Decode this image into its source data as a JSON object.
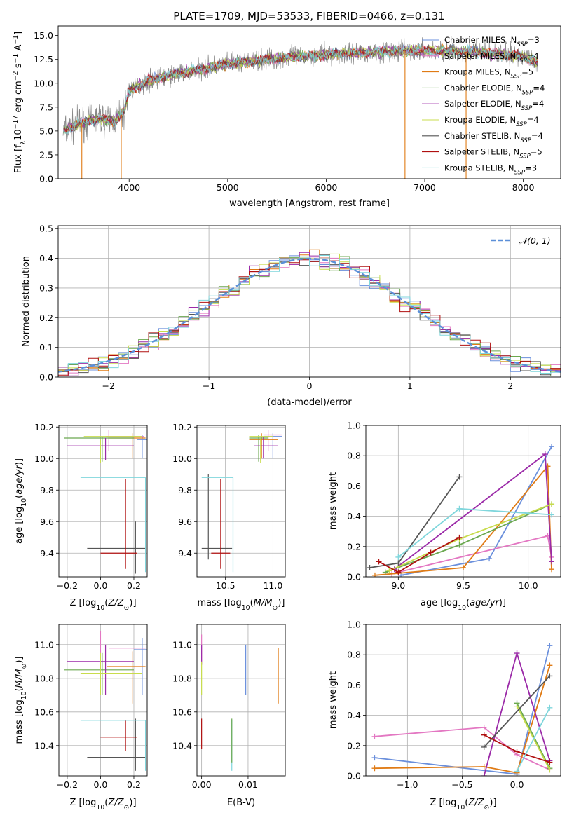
{
  "colors": {
    "Chabrier MILES": "#6a8fdc",
    "Salpeter MILES": "#e377c2",
    "Kroupa MILES": "#e07b15",
    "Chabrier ELODIE": "#6aa84f",
    "Salpeter ELODIE": "#9b2aa8",
    "Kroupa ELODIE": "#c8dc4c",
    "Chabrier STELIB": "#555555",
    "Salpeter STELIB": "#b01010",
    "Kroupa STELIB": "#7fd6dc",
    "gauss": "#5b8fd8",
    "grid": "#b0b0b0"
  },
  "chart_data": [
    {
      "id": "spectrum",
      "type": "line",
      "title": "PLATE=1709, MJD=53533, FIBERID=0466, z=0.131",
      "xlabel": "wavelength [Angstrom, rest frame]",
      "ylabel": "Flux [fλ10⁻¹⁷ erg cm⁻² s⁻¹ A⁻¹]",
      "xlim": [
        3280,
        8380
      ],
      "ylim": [
        0,
        16
      ],
      "xticks": [
        4000,
        5000,
        6000,
        7000,
        8000
      ],
      "yticks": [
        0.0,
        2.5,
        5.0,
        7.5,
        10.0,
        12.5,
        15.0
      ],
      "grid": false,
      "legend_position": "top-right",
      "legend": [
        {
          "model": "Chabrier MILES",
          "prefix": "Chabrier MILES, N",
          "n": "3"
        },
        {
          "model": "Salpeter MILES",
          "prefix": "Salpeter MILES, N",
          "n": "4"
        },
        {
          "model": "Kroupa MILES",
          "prefix": "Kroupa MILES, N",
          "n": "5"
        },
        {
          "model": "Chabrier ELODIE",
          "prefix": "Chabrier ELODIE, N",
          "n": "4"
        },
        {
          "model": "Salpeter ELODIE",
          "prefix": "Salpeter ELODIE, N",
          "n": "4"
        },
        {
          "model": "Kroupa ELODIE",
          "prefix": "Kroupa ELODIE, N",
          "n": "4"
        },
        {
          "model": "Chabrier STELIB",
          "prefix": "Chabrier STELIB, N",
          "n": "4"
        },
        {
          "model": "Salpeter STELIB",
          "prefix": "Salpeter STELIB, N",
          "n": "5"
        },
        {
          "model": "Kroupa STELIB",
          "prefix": "Kroupa STELIB, N",
          "n": "3"
        }
      ],
      "legend_subscript": "SSP",
      "continuum": [
        [
          3330,
          5.0
        ],
        [
          3500,
          5.8
        ],
        [
          3700,
          6.3
        ],
        [
          3850,
          6.0
        ],
        [
          3950,
          7.0
        ],
        [
          4000,
          9.2
        ],
        [
          4200,
          10.3
        ],
        [
          4500,
          11.0
        ],
        [
          5000,
          12.0
        ],
        [
          5500,
          12.6
        ],
        [
          6000,
          13.0
        ],
        [
          6500,
          13.3
        ],
        [
          7000,
          13.4
        ],
        [
          7500,
          13.3
        ],
        [
          8000,
          12.8
        ],
        [
          8150,
          12.2
        ]
      ],
      "drops": [
        3520,
        3920,
        6800,
        7420
      ]
    },
    {
      "id": "residuals",
      "type": "line",
      "xlabel": "(data-model)/error",
      "ylabel": "Normed distribution",
      "xlim": [
        -2.5,
        2.5
      ],
      "ylim": [
        0,
        0.51
      ],
      "xticks": [
        -2,
        -1,
        0,
        1,
        2
      ],
      "yticks": [
        0.0,
        0.1,
        0.2,
        0.3,
        0.4,
        0.5
      ],
      "grid": true,
      "legend_position": "top-right",
      "legend_label": "𝒩(0, 1)",
      "bin_width": 0.1
    },
    {
      "id": "age-Z",
      "type": "scatter",
      "xlabel": "Z [log₁₀(Z/Z⊙)]",
      "ylabel": "age  [log₁₀(age/yr)]",
      "xlim": [
        -0.25,
        0.28
      ],
      "ylim": [
        9.25,
        10.21
      ],
      "xticks": [
        -0.2,
        0.0,
        0.2
      ],
      "yticks": [
        9.4,
        9.6,
        9.8,
        10.0,
        10.2
      ],
      "grid": true,
      "bars": [
        {
          "model": "Chabrier MILES",
          "h": [
            0.22,
            0.28
          ],
          "hy": 10.12,
          "v": [
            10.0,
            10.15
          ],
          "vx": 0.25
        },
        {
          "model": "Salpeter MILES",
          "h": [
            0.03,
            0.26
          ],
          "hy": 10.14,
          "v": [
            10.05,
            10.18
          ],
          "vx": 0.05
        },
        {
          "model": "Kroupa MILES",
          "h": [
            0.05,
            0.27
          ],
          "hy": 10.13,
          "v": [
            10.0,
            10.16
          ],
          "vx": 0.19
        },
        {
          "model": "Chabrier ELODIE",
          "h": [
            -0.22,
            0.2
          ],
          "hy": 10.13,
          "v": [
            9.98,
            10.14
          ],
          "vx": 0.01
        },
        {
          "model": "Salpeter ELODIE",
          "h": [
            -0.2,
            0.2
          ],
          "hy": 10.08,
          "v": [
            9.99,
            10.13
          ],
          "vx": 0.03
        },
        {
          "model": "Kroupa ELODIE",
          "h": [
            -0.1,
            0.25
          ],
          "hy": 10.14,
          "v": [
            9.97,
            10.12
          ],
          "vx": 0.0
        },
        {
          "model": "Chabrier STELIB",
          "h": [
            -0.08,
            0.27
          ],
          "hy": 9.43,
          "v": [
            9.27,
            9.6
          ],
          "vx": 0.21
        },
        {
          "model": "Salpeter STELIB",
          "h": [
            0.0,
            0.22
          ],
          "hy": 9.4,
          "v": [
            9.3,
            9.87
          ],
          "vx": 0.15
        },
        {
          "model": "Kroupa STELIB",
          "h": [
            -0.12,
            0.27
          ],
          "hy": 9.88,
          "v": [
            9.28,
            9.88
          ],
          "vx": 0.27
        }
      ]
    },
    {
      "id": "age-mass",
      "type": "scatter",
      "xlabel": "mass [log₁₀(M/M⊙)]",
      "ylabel": "",
      "xlim": [
        10.2,
        11.13
      ],
      "ylim": [
        9.25,
        10.21
      ],
      "xticks": [
        10.5,
        11.0
      ],
      "yticks": [
        9.4,
        9.6,
        9.8,
        10.0,
        10.2
      ],
      "grid": true,
      "bars": [
        {
          "model": "Chabrier MILES",
          "h": [
            10.9,
            11.1
          ],
          "hy": 10.14,
          "v": [
            10.0,
            10.16
          ],
          "vx": 11.0
        },
        {
          "model": "Salpeter MILES",
          "h": [
            10.9,
            11.1
          ],
          "hy": 10.15,
          "v": [
            10.05,
            10.18
          ],
          "vx": 10.95
        },
        {
          "model": "Kroupa MILES",
          "h": [
            10.75,
            11.05
          ],
          "hy": 10.12,
          "v": [
            10.0,
            10.16
          ],
          "vx": 10.88
        },
        {
          "model": "Chabrier ELODIE",
          "h": [
            10.75,
            10.95
          ],
          "hy": 10.13,
          "v": [
            9.98,
            10.15
          ],
          "vx": 10.85
        },
        {
          "model": "Salpeter ELODIE",
          "h": [
            10.8,
            11.05
          ],
          "hy": 10.08,
          "v": [
            10.0,
            10.14
          ],
          "vx": 10.9
        },
        {
          "model": "Kroupa ELODIE",
          "h": [
            10.75,
            11.0
          ],
          "hy": 10.14,
          "v": [
            9.97,
            10.12
          ],
          "vx": 10.87
        },
        {
          "model": "Chabrier STELIB",
          "h": [
            10.25,
            10.57
          ],
          "hy": 9.43,
          "v": [
            9.36,
            9.9
          ],
          "vx": 10.32
        },
        {
          "model": "Salpeter STELIB",
          "h": [
            10.35,
            10.55
          ],
          "hy": 9.4,
          "v": [
            9.3,
            9.87
          ],
          "vx": 10.45
        },
        {
          "model": "Kroupa STELIB",
          "h": [
            10.25,
            10.58
          ],
          "hy": 9.88,
          "v": [
            9.28,
            9.88
          ],
          "vx": 10.58
        }
      ]
    },
    {
      "id": "weight-age",
      "type": "line",
      "xlabel": "age  [log₁₀(age/yr)]",
      "ylabel": "mass weight",
      "xlim": [
        8.75,
        10.25
      ],
      "ylim": [
        0,
        1.0
      ],
      "xticks": [
        9.0,
        9.5,
        10.0
      ],
      "yticks": [
        0.0,
        0.2,
        0.4,
        0.6,
        0.8,
        1.0
      ],
      "grid": true,
      "series": [
        {
          "model": "Chabrier MILES",
          "x": [
            9.02,
            9.7,
            10.18
          ],
          "y": [
            0.01,
            0.12,
            0.86
          ]
        },
        {
          "model": "Salpeter MILES",
          "x": [
            8.95,
            10.15,
            10.18
          ],
          "y": [
            0.02,
            0.27,
            0.13
          ]
        },
        {
          "model": "Kroupa MILES",
          "x": [
            8.82,
            9.5,
            10.15,
            10.18
          ],
          "y": [
            0.01,
            0.06,
            0.73,
            0.05
          ]
        },
        {
          "model": "Chabrier ELODIE",
          "x": [
            8.9,
            9.47,
            10.18
          ],
          "y": [
            0.03,
            0.21,
            0.48
          ]
        },
        {
          "model": "Salpeter ELODIE",
          "x": [
            8.97,
            10.13,
            10.18
          ],
          "y": [
            0.05,
            0.81,
            0.1
          ]
        },
        {
          "model": "Kroupa ELODIE",
          "x": [
            8.93,
            9.47,
            10.18
          ],
          "y": [
            0.04,
            0.25,
            0.48
          ]
        },
        {
          "model": "Chabrier STELIB",
          "x": [
            8.78,
            9.0,
            9.47
          ],
          "y": [
            0.06,
            0.09,
            0.66
          ]
        },
        {
          "model": "Salpeter STELIB",
          "x": [
            8.85,
            9.0,
            9.25,
            9.47
          ],
          "y": [
            0.1,
            0.03,
            0.16,
            0.26
          ]
        },
        {
          "model": "Kroupa STELIB",
          "x": [
            9.0,
            9.47,
            10.18
          ],
          "y": [
            0.13,
            0.45,
            0.41
          ]
        }
      ]
    },
    {
      "id": "mass-Z",
      "type": "scatter",
      "xlabel": "Z [log₁₀(Z/Z⊙)]",
      "ylabel": "mass [log₁₀(M/M⊙)]",
      "xlim": [
        -0.25,
        0.28
      ],
      "ylim": [
        10.22,
        11.12
      ],
      "xticks": [
        -0.2,
        0.0,
        0.2
      ],
      "yticks": [
        10.4,
        10.6,
        10.8,
        11.0
      ],
      "grid": true,
      "bars": [
        {
          "model": "Chabrier MILES",
          "h": [
            0.2,
            0.28
          ],
          "hy": 10.97,
          "v": [
            10.7,
            11.04
          ],
          "vx": 0.25
        },
        {
          "model": "Salpeter MILES",
          "h": [
            0.05,
            0.27
          ],
          "hy": 10.98,
          "v": [
            10.85,
            11.08
          ],
          "vx": 0.0
        },
        {
          "model": "Kroupa MILES",
          "h": [
            0.04,
            0.27
          ],
          "hy": 10.87,
          "v": [
            10.65,
            10.96
          ],
          "vx": 0.19
        },
        {
          "model": "Chabrier ELODIE",
          "h": [
            -0.22,
            0.2
          ],
          "hy": 10.85,
          "v": [
            10.7,
            10.95
          ],
          "vx": 0.01
        },
        {
          "model": "Salpeter ELODIE",
          "h": [
            -0.2,
            0.2
          ],
          "hy": 10.9,
          "v": [
            10.7,
            11.0
          ],
          "vx": 0.03
        },
        {
          "model": "Kroupa ELODIE",
          "h": [
            -0.12,
            0.25
          ],
          "hy": 10.83,
          "v": [
            10.7,
            10.95
          ],
          "vx": 0.0
        },
        {
          "model": "Chabrier STELIB",
          "h": [
            -0.08,
            0.27
          ],
          "hy": 10.33,
          "v": [
            10.25,
            10.56
          ],
          "vx": 0.21
        },
        {
          "model": "Salpeter STELIB",
          "h": [
            0.0,
            0.22
          ],
          "hy": 10.45,
          "v": [
            10.37,
            10.55
          ],
          "vx": 0.15
        },
        {
          "model": "Kroupa STELIB",
          "h": [
            -0.12,
            0.27
          ],
          "hy": 10.55,
          "v": [
            10.25,
            10.55
          ],
          "vx": 0.27
        }
      ]
    },
    {
      "id": "mass-ebv",
      "type": "scatter",
      "xlabel": "E(B-V)",
      "ylabel": "",
      "xlim": [
        -0.001,
        0.018
      ],
      "ylim": [
        10.22,
        11.12
      ],
      "xticks": [
        0.0,
        0.01
      ],
      "yticks": [
        10.4,
        10.6,
        10.8,
        11.0
      ],
      "grid": true,
      "bars": [
        {
          "model": "Chabrier MILES",
          "vx": 0.0095,
          "v": [
            10.7,
            11.0
          ]
        },
        {
          "model": "Kroupa MILES",
          "vx": 0.0165,
          "v": [
            10.65,
            10.98
          ]
        },
        {
          "model": "Salpeter MILES",
          "vx": 0.0,
          "v": [
            10.9,
            11.06
          ]
        },
        {
          "model": "Salpeter ELODIE",
          "vx": 0.0,
          "v": [
            10.88,
            11.0
          ]
        },
        {
          "model": "Kroupa ELODIE",
          "vx": 0.0,
          "v": [
            10.7,
            10.9
          ]
        },
        {
          "model": "Salpeter STELIB",
          "vx": 0.0,
          "v": [
            10.38,
            10.56
          ]
        },
        {
          "model": "Kroupa STELIB",
          "vx": 0.0065,
          "v": [
            10.25,
            10.55
          ]
        },
        {
          "model": "Chabrier ELODIE",
          "vx": 0.0065,
          "v": [
            10.3,
            10.56
          ]
        }
      ]
    },
    {
      "id": "weight-Z",
      "type": "line",
      "xlabel": "Z [log₁₀(Z/Z⊙)]",
      "ylabel": "mass weight",
      "xlim": [
        -1.38,
        0.4
      ],
      "ylim": [
        0,
        1.0
      ],
      "xticks": [
        -1.0,
        -0.5,
        0.0
      ],
      "yticks": [
        0.0,
        0.2,
        0.4,
        0.6,
        0.8,
        1.0
      ],
      "grid": true,
      "series": [
        {
          "model": "Chabrier MILES",
          "x": [
            -1.3,
            0.0,
            0.3
          ],
          "y": [
            0.12,
            0.01,
            0.86
          ]
        },
        {
          "model": "Salpeter MILES",
          "x": [
            -1.3,
            -0.3,
            0.0,
            0.3
          ],
          "y": [
            0.26,
            0.32,
            0.14,
            0.04
          ]
        },
        {
          "model": "Kroupa MILES",
          "x": [
            -1.3,
            -0.3,
            0.0,
            0.3
          ],
          "y": [
            0.05,
            0.06,
            0.02,
            0.73
          ]
        },
        {
          "model": "Chabrier ELODIE",
          "x": [
            0.0,
            0.3
          ],
          "y": [
            0.48,
            0.05
          ]
        },
        {
          "model": "Salpeter ELODIE",
          "x": [
            -0.3,
            0.0,
            0.3
          ],
          "y": [
            0.0,
            0.81,
            0.1
          ]
        },
        {
          "model": "Kroupa ELODIE",
          "x": [
            0.0,
            0.3
          ],
          "y": [
            0.46,
            0.04
          ]
        },
        {
          "model": "Chabrier STELIB",
          "x": [
            -0.3,
            0.3
          ],
          "y": [
            0.19,
            0.66
          ]
        },
        {
          "model": "Salpeter STELIB",
          "x": [
            -0.3,
            0.0,
            0.3
          ],
          "y": [
            0.27,
            0.16,
            0.09
          ]
        },
        {
          "model": "Kroupa STELIB",
          "x": [
            0.0,
            0.3
          ],
          "y": [
            0.03,
            0.45
          ]
        }
      ]
    }
  ]
}
